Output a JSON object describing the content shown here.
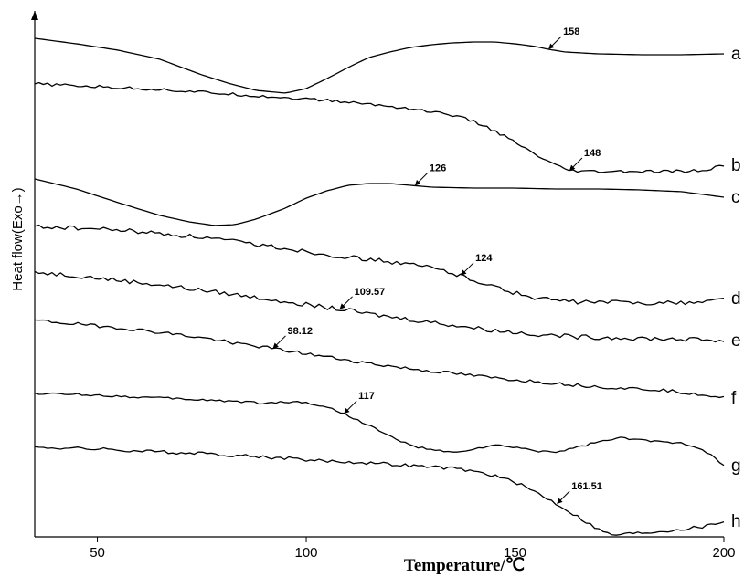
{
  "chart_data": {
    "type": "line",
    "title": "",
    "xlabel": "Temperature/℃",
    "ylabel": "Heat flow(Exo→)",
    "xlim": [
      35,
      200
    ],
    "xticks": [
      50,
      100,
      150,
      200
    ],
    "y_axis_ticks": false,
    "grid": false,
    "legend": "none",
    "line_color": "#000000",
    "series": [
      {
        "label": "a",
        "offset": 0,
        "noise": 0,
        "points": [
          [
            35,
            -42
          ],
          [
            45,
            -48
          ],
          [
            55,
            -55
          ],
          [
            65,
            -65
          ],
          [
            75,
            -82
          ],
          [
            82,
            -92
          ],
          [
            88,
            -99
          ],
          [
            95,
            -102
          ],
          [
            100,
            -97
          ],
          [
            105,
            -86
          ],
          [
            110,
            -74
          ],
          [
            115,
            -63
          ],
          [
            120,
            -57
          ],
          [
            125,
            -52
          ],
          [
            130,
            -49
          ],
          [
            135,
            -47
          ],
          [
            140,
            -46
          ],
          [
            145,
            -46
          ],
          [
            150,
            -48
          ],
          [
            155,
            -51
          ],
          [
            158,
            -54
          ],
          [
            162,
            -57
          ],
          [
            170,
            -59
          ],
          [
            180,
            -60
          ],
          [
            190,
            -60
          ],
          [
            200,
            -59
          ]
        ],
        "annotation": {
          "text": "158",
          "x": 158
        }
      },
      {
        "label": "b",
        "offset": 0,
        "noise": 1.6,
        "points": [
          [
            35,
            -92
          ],
          [
            45,
            -94
          ],
          [
            55,
            -96
          ],
          [
            65,
            -98
          ],
          [
            75,
            -101
          ],
          [
            85,
            -104
          ],
          [
            95,
            -107
          ],
          [
            105,
            -110
          ],
          [
            115,
            -114
          ],
          [
            125,
            -119
          ],
          [
            135,
            -126
          ],
          [
            140,
            -133
          ],
          [
            145,
            -143
          ],
          [
            150,
            -156
          ],
          [
            155,
            -170
          ],
          [
            160,
            -182
          ],
          [
            163,
            -187
          ],
          [
            167,
            -188
          ],
          [
            175,
            -188
          ],
          [
            185,
            -188
          ],
          [
            195,
            -187
          ],
          [
            200,
            -181
          ]
        ],
        "annotation": {
          "text": "148",
          "x": 163
        }
      },
      {
        "label": "c",
        "offset": 0,
        "noise": 0,
        "points": [
          [
            35,
            -196
          ],
          [
            45,
            -207
          ],
          [
            55,
            -222
          ],
          [
            65,
            -236
          ],
          [
            72,
            -243
          ],
          [
            78,
            -247
          ],
          [
            83,
            -246
          ],
          [
            88,
            -240
          ],
          [
            95,
            -228
          ],
          [
            100,
            -217
          ],
          [
            105,
            -209
          ],
          [
            110,
            -203
          ],
          [
            115,
            -201
          ],
          [
            120,
            -201
          ],
          [
            125,
            -203
          ],
          [
            130,
            -205
          ],
          [
            140,
            -206
          ],
          [
            150,
            -206
          ],
          [
            160,
            -207
          ],
          [
            170,
            -207
          ],
          [
            180,
            -208
          ],
          [
            190,
            -210
          ],
          [
            200,
            -216
          ]
        ],
        "annotation": {
          "text": "126",
          "x": 126
        }
      },
      {
        "label": "d",
        "offset": 0,
        "noise": 2.4,
        "points": [
          [
            35,
            -248
          ],
          [
            45,
            -250
          ],
          [
            55,
            -252
          ],
          [
            65,
            -256
          ],
          [
            75,
            -260
          ],
          [
            85,
            -266
          ],
          [
            95,
            -272
          ],
          [
            105,
            -279
          ],
          [
            115,
            -284
          ],
          [
            125,
            -290
          ],
          [
            130,
            -293
          ],
          [
            135,
            -299
          ],
          [
            140,
            -306
          ],
          [
            145,
            -314
          ],
          [
            150,
            -321
          ],
          [
            155,
            -326
          ],
          [
            160,
            -329
          ],
          [
            165,
            -331
          ],
          [
            175,
            -331
          ],
          [
            185,
            -332
          ],
          [
            195,
            -331
          ],
          [
            200,
            -327
          ]
        ],
        "annotation": {
          "text": "124",
          "x": 137
        }
      },
      {
        "label": "e",
        "offset": 0,
        "noise": 2.4,
        "points": [
          [
            35,
            -298
          ],
          [
            45,
            -302
          ],
          [
            55,
            -307
          ],
          [
            65,
            -312
          ],
          [
            75,
            -318
          ],
          [
            85,
            -324
          ],
          [
            95,
            -330
          ],
          [
            105,
            -337
          ],
          [
            110,
            -340
          ],
          [
            115,
            -344
          ],
          [
            125,
            -350
          ],
          [
            135,
            -356
          ],
          [
            145,
            -362
          ],
          [
            155,
            -366
          ],
          [
            165,
            -369
          ],
          [
            175,
            -370
          ],
          [
            185,
            -371
          ],
          [
            195,
            -372
          ],
          [
            200,
            -373
          ]
        ],
        "annotation": {
          "text": "109.57",
          "x": 108
        }
      },
      {
        "label": "f",
        "offset": 0,
        "noise": 1.8,
        "points": [
          [
            35,
            -351
          ],
          [
            45,
            -355
          ],
          [
            55,
            -359
          ],
          [
            65,
            -364
          ],
          [
            75,
            -370
          ],
          [
            85,
            -377
          ],
          [
            95,
            -384
          ],
          [
            105,
            -391
          ],
          [
            115,
            -398
          ],
          [
            125,
            -404
          ],
          [
            135,
            -409
          ],
          [
            145,
            -414
          ],
          [
            155,
            -418
          ],
          [
            165,
            -422
          ],
          [
            175,
            -425
          ],
          [
            185,
            -427
          ],
          [
            195,
            -432
          ],
          [
            200,
            -436
          ]
        ],
        "annotation": {
          "text": "98.12",
          "x": 92
        }
      },
      {
        "label": "g",
        "offset": 0,
        "noise": 1.2,
        "points": [
          [
            35,
            -431
          ],
          [
            45,
            -432
          ],
          [
            55,
            -434
          ],
          [
            65,
            -436
          ],
          [
            75,
            -438
          ],
          [
            85,
            -440
          ],
          [
            90,
            -442
          ],
          [
            95,
            -440
          ],
          [
            100,
            -441
          ],
          [
            105,
            -446
          ],
          [
            110,
            -455
          ],
          [
            115,
            -466
          ],
          [
            120,
            -478
          ],
          [
            125,
            -488
          ],
          [
            130,
            -493
          ],
          [
            135,
            -496
          ],
          [
            140,
            -492
          ],
          [
            145,
            -488
          ],
          [
            150,
            -490
          ],
          [
            155,
            -494
          ],
          [
            160,
            -495
          ],
          [
            165,
            -490
          ],
          [
            170,
            -484
          ],
          [
            175,
            -480
          ],
          [
            180,
            -482
          ],
          [
            185,
            -484
          ],
          [
            190,
            -485
          ],
          [
            195,
            -492
          ],
          [
            200,
            -510
          ]
        ],
        "annotation": {
          "text": "117",
          "x": 109
        }
      },
      {
        "label": "h",
        "offset": 0,
        "noise": 1.8,
        "points": [
          [
            35,
            -490
          ],
          [
            45,
            -491
          ],
          [
            55,
            -493
          ],
          [
            65,
            -495
          ],
          [
            75,
            -497
          ],
          [
            85,
            -499
          ],
          [
            95,
            -502
          ],
          [
            105,
            -505
          ],
          [
            115,
            -507
          ],
          [
            125,
            -510
          ],
          [
            135,
            -513
          ],
          [
            140,
            -516
          ],
          [
            145,
            -521
          ],
          [
            150,
            -528
          ],
          [
            155,
            -539
          ],
          [
            160,
            -552
          ],
          [
            165,
            -566
          ],
          [
            170,
            -580
          ],
          [
            173,
            -586
          ],
          [
            176,
            -585
          ],
          [
            185,
            -582
          ],
          [
            195,
            -577
          ],
          [
            200,
            -571
          ]
        ],
        "annotation": {
          "text": "161.51",
          "x": 160
        }
      }
    ]
  }
}
